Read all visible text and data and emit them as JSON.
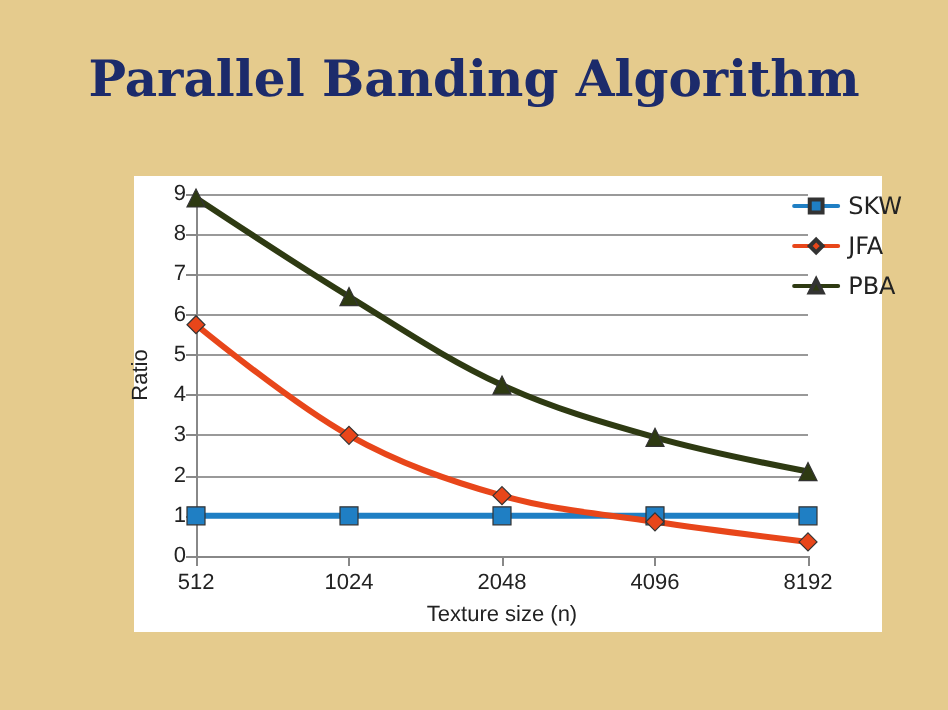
{
  "chart_data": {
    "type": "line",
    "title": "Parallel Banding Algorithm",
    "xlabel": "Texture size (n)",
    "ylabel": "Ratio",
    "categories": [
      "512",
      "1024",
      "2048",
      "4096",
      "8192"
    ],
    "series": [
      {
        "name": "SKW",
        "color": "#1f7fc4",
        "marker": "square",
        "values": [
          1,
          1,
          1,
          1,
          1
        ]
      },
      {
        "name": "JFA",
        "color": "#e8461a",
        "marker": "diamond",
        "values": [
          5.75,
          3.0,
          1.5,
          0.85,
          0.35
        ]
      },
      {
        "name": "PBA",
        "color": "#2e3a12",
        "marker": "triangle",
        "values": [
          8.9,
          6.45,
          4.25,
          2.95,
          2.1
        ]
      }
    ],
    "ylim": [
      0,
      9
    ],
    "yticks": [
      0,
      1,
      2,
      3,
      4,
      5,
      6,
      7,
      8,
      9
    ],
    "grid": "y",
    "legend": "top right",
    "line_style": "solid"
  }
}
